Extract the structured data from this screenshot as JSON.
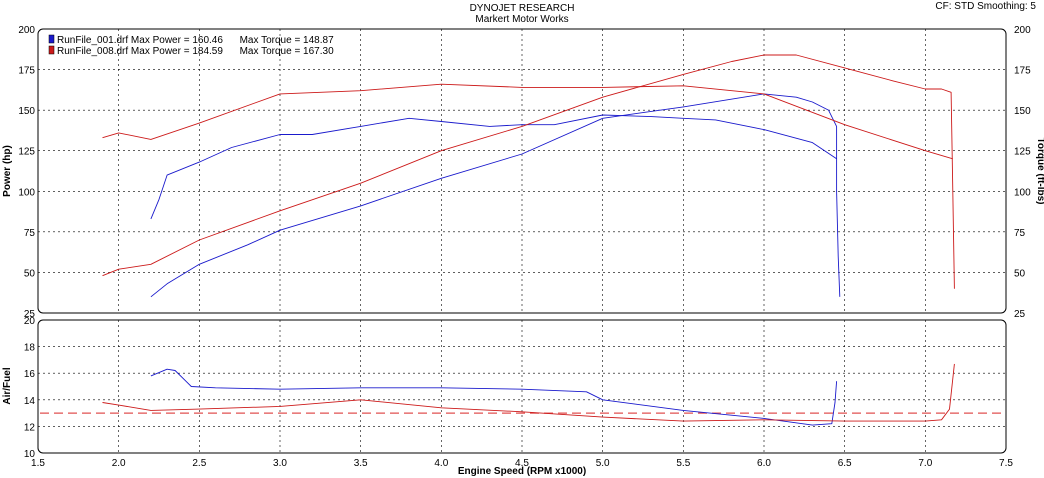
{
  "header": {
    "title": "DYNOJET RESEARCH",
    "subtitle": "Markert Motor Works",
    "cf_info": "CF: STD  Smoothing: 5"
  },
  "colors": {
    "run1": "#1a1acc",
    "run2": "#cc1a1a",
    "afr_target": "#e05050",
    "grid": "#000000",
    "background": "#ffffff"
  },
  "chart_data": [
    {
      "type": "line",
      "name": "power-torque",
      "xlabel": "",
      "ylabel_left": "Power (hp)",
      "ylabel_right": "Torque (ft-lbs)",
      "xlim": [
        1.5,
        7.5
      ],
      "ylim": [
        25,
        200
      ],
      "x_ticks": [
        1.5,
        2.0,
        2.5,
        3.0,
        3.5,
        4.0,
        4.5,
        5.0,
        5.5,
        6.0,
        6.5,
        7.0,
        7.5
      ],
      "y_ticks": [
        25,
        50,
        75,
        100,
        125,
        150,
        175,
        200
      ],
      "grid": true,
      "legend": [
        {
          "label": "RunFile_001.drf Max Power = 160.46      Max Torque = 148.87",
          "color": "#1a1acc"
        },
        {
          "label": "RunFile_008.drf Max Power = 184.59      Max Torque = 167.30",
          "color": "#cc1a1a"
        }
      ],
      "series": [
        {
          "run": 1,
          "kind": "power",
          "color": "#1a1acc",
          "x": [
            2.2,
            2.3,
            2.5,
            2.8,
            3.0,
            3.5,
            4.0,
            4.5,
            5.0,
            5.5,
            6.0,
            6.2,
            6.3,
            6.4,
            6.45,
            6.45,
            6.46,
            6.47
          ],
          "y": [
            35,
            43,
            55,
            67,
            76,
            91,
            108,
            123,
            145,
            152,
            160,
            158,
            155,
            150,
            140,
            100,
            60,
            35
          ]
        },
        {
          "run": 1,
          "kind": "torque",
          "color": "#1a1acc",
          "x": [
            2.2,
            2.25,
            2.3,
            2.5,
            2.7,
            3.0,
            3.2,
            3.5,
            3.8,
            4.0,
            4.3,
            4.5,
            4.7,
            5.0,
            5.3,
            5.5,
            5.7,
            6.0,
            6.3,
            6.45
          ],
          "y": [
            83,
            95,
            110,
            118,
            127,
            135,
            135,
            140,
            145,
            143,
            140,
            141,
            141,
            147,
            146,
            145,
            144,
            138,
            130,
            120
          ]
        },
        {
          "run": 2,
          "kind": "power",
          "color": "#cc1a1a",
          "x": [
            1.9,
            2.0,
            2.2,
            2.5,
            3.0,
            3.5,
            4.0,
            4.5,
            5.0,
            5.5,
            5.8,
            6.0,
            6.2,
            6.5,
            6.8,
            7.0,
            7.1,
            7.16,
            7.17,
            7.18
          ],
          "y": [
            48,
            52,
            55,
            70,
            88,
            105,
            125,
            140,
            158,
            172,
            180,
            184,
            184,
            176,
            168,
            163,
            163,
            161,
            100,
            40
          ]
        },
        {
          "run": 2,
          "kind": "torque",
          "color": "#cc1a1a",
          "x": [
            1.9,
            2.0,
            2.2,
            2.5,
            3.0,
            3.5,
            4.0,
            4.5,
            5.0,
            5.5,
            6.0,
            6.5,
            7.0,
            7.17
          ],
          "y": [
            133,
            136,
            132,
            142,
            160,
            162,
            166,
            164,
            164,
            165,
            160,
            141,
            125,
            120
          ]
        }
      ]
    },
    {
      "type": "line",
      "name": "air-fuel",
      "xlabel": "Engine Speed (RPM x1000)",
      "ylabel": "Air/Fuel",
      "xlim": [
        1.5,
        7.5
      ],
      "ylim": [
        10,
        20
      ],
      "x_ticks": [
        1.5,
        2.0,
        2.5,
        3.0,
        3.5,
        4.0,
        4.5,
        5.0,
        5.5,
        6.0,
        6.5,
        7.0,
        7.5
      ],
      "y_ticks": [
        10,
        12,
        14,
        16,
        18,
        20
      ],
      "grid": true,
      "target_afr": 13,
      "series": [
        {
          "run": 1,
          "color": "#1a1acc",
          "x": [
            2.2,
            2.3,
            2.35,
            2.45,
            2.6,
            3.0,
            3.5,
            4.0,
            4.5,
            4.9,
            5.0,
            5.5,
            6.0,
            6.3,
            6.42,
            6.44,
            6.45
          ],
          "y": [
            15.8,
            16.3,
            16.2,
            15.0,
            14.9,
            14.8,
            14.9,
            14.9,
            14.8,
            14.6,
            14.0,
            13.2,
            12.6,
            12.1,
            12.2,
            13.8,
            15.4
          ]
        },
        {
          "run": 2,
          "color": "#cc1a1a",
          "x": [
            1.9,
            2.0,
            2.2,
            2.5,
            3.0,
            3.5,
            4.0,
            4.5,
            5.0,
            5.5,
            6.0,
            6.5,
            7.0,
            7.1,
            7.15,
            7.18
          ],
          "y": [
            13.8,
            13.6,
            13.2,
            13.3,
            13.5,
            14.0,
            13.4,
            13.1,
            12.7,
            12.4,
            12.5,
            12.4,
            12.4,
            12.5,
            13.3,
            16.7
          ]
        }
      ]
    }
  ]
}
